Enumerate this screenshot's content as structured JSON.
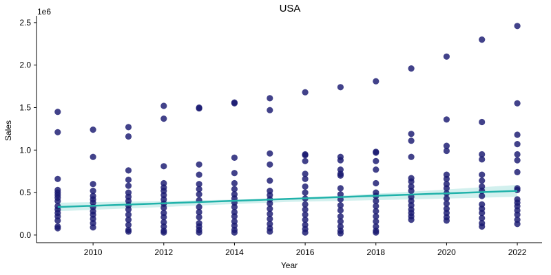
{
  "chart_data": {
    "type": "scatter",
    "title": "USA",
    "xlabel": "Year",
    "ylabel": "Sales",
    "y_offset_label": "1e6",
    "xlim": [
      2008.4,
      2022.7
    ],
    "ylim": [
      -0.09,
      2.58
    ],
    "xticks": [
      2010,
      2012,
      2014,
      2016,
      2018,
      2020,
      2022
    ],
    "yticks": [
      0.0,
      0.5,
      1.0,
      1.5,
      2.0,
      2.5
    ],
    "ytick_labels": [
      "0.0",
      "0.5",
      "1.0",
      "1.5",
      "2.0",
      "2.5"
    ],
    "grid": false,
    "colors": {
      "points": "#191970",
      "trend": "#20b2aa",
      "band": "#20b2aa"
    },
    "series": [
      {
        "name": "sales",
        "points": [
          [
            2009,
            1.45
          ],
          [
            2009,
            1.21
          ],
          [
            2009,
            0.66
          ],
          [
            2009,
            0.53
          ],
          [
            2009,
            0.5
          ],
          [
            2009,
            0.47
          ],
          [
            2009,
            0.44
          ],
          [
            2009,
            0.4
          ],
          [
            2009,
            0.34
          ],
          [
            2009,
            0.3
          ],
          [
            2009,
            0.26
          ],
          [
            2009,
            0.22
          ],
          [
            2009,
            0.17
          ],
          [
            2009,
            0.1
          ],
          [
            2009,
            0.08
          ],
          [
            2010,
            1.24
          ],
          [
            2010,
            0.92
          ],
          [
            2010,
            0.6
          ],
          [
            2010,
            0.52
          ],
          [
            2010,
            0.46
          ],
          [
            2010,
            0.42
          ],
          [
            2010,
            0.38
          ],
          [
            2010,
            0.33
          ],
          [
            2010,
            0.28
          ],
          [
            2010,
            0.24
          ],
          [
            2010,
            0.19
          ],
          [
            2010,
            0.14
          ],
          [
            2010,
            0.09
          ],
          [
            2011,
            1.27
          ],
          [
            2011,
            1.16
          ],
          [
            2011,
            0.76
          ],
          [
            2011,
            0.65
          ],
          [
            2011,
            0.58
          ],
          [
            2011,
            0.5
          ],
          [
            2011,
            0.45
          ],
          [
            2011,
            0.4
          ],
          [
            2011,
            0.35
          ],
          [
            2011,
            0.3
          ],
          [
            2011,
            0.24
          ],
          [
            2011,
            0.18
          ],
          [
            2011,
            0.12
          ],
          [
            2011,
            0.06
          ],
          [
            2011,
            0.04
          ],
          [
            2012,
            1.52
          ],
          [
            2012,
            1.37
          ],
          [
            2012,
            0.81
          ],
          [
            2012,
            0.61
          ],
          [
            2012,
            0.56
          ],
          [
            2012,
            0.52
          ],
          [
            2012,
            0.47
          ],
          [
            2012,
            0.42
          ],
          [
            2012,
            0.37
          ],
          [
            2012,
            0.32
          ],
          [
            2012,
            0.26
          ],
          [
            2012,
            0.21
          ],
          [
            2012,
            0.15
          ],
          [
            2012,
            0.1
          ],
          [
            2012,
            0.05
          ],
          [
            2012,
            0.03
          ],
          [
            2013,
            1.5
          ],
          [
            2013,
            1.49
          ],
          [
            2013,
            0.83
          ],
          [
            2013,
            0.71
          ],
          [
            2013,
            0.6
          ],
          [
            2013,
            0.54
          ],
          [
            2013,
            0.48
          ],
          [
            2013,
            0.41
          ],
          [
            2013,
            0.33
          ],
          [
            2013,
            0.27
          ],
          [
            2013,
            0.21
          ],
          [
            2013,
            0.14
          ],
          [
            2013,
            0.1
          ],
          [
            2013,
            0.06
          ],
          [
            2013,
            0.03
          ],
          [
            2014,
            1.56
          ],
          [
            2014,
            1.55
          ],
          [
            2014,
            0.91
          ],
          [
            2014,
            0.73
          ],
          [
            2014,
            0.61
          ],
          [
            2014,
            0.54
          ],
          [
            2014,
            0.48
          ],
          [
            2014,
            0.43
          ],
          [
            2014,
            0.38
          ],
          [
            2014,
            0.33
          ],
          [
            2014,
            0.27
          ],
          [
            2014,
            0.22
          ],
          [
            2014,
            0.16
          ],
          [
            2014,
            0.11
          ],
          [
            2014,
            0.06
          ],
          [
            2014,
            0.03
          ],
          [
            2015,
            1.61
          ],
          [
            2015,
            1.47
          ],
          [
            2015,
            0.96
          ],
          [
            2015,
            0.83
          ],
          [
            2015,
            0.64
          ],
          [
            2015,
            0.52
          ],
          [
            2015,
            0.47
          ],
          [
            2015,
            0.42
          ],
          [
            2015,
            0.37
          ],
          [
            2015,
            0.31
          ],
          [
            2015,
            0.25
          ],
          [
            2015,
            0.19
          ],
          [
            2015,
            0.13
          ],
          [
            2015,
            0.08
          ],
          [
            2015,
            0.04
          ],
          [
            2016,
            1.68
          ],
          [
            2016,
            0.95
          ],
          [
            2016,
            0.94
          ],
          [
            2016,
            0.87
          ],
          [
            2016,
            0.72
          ],
          [
            2016,
            0.66
          ],
          [
            2016,
            0.57
          ],
          [
            2016,
            0.5
          ],
          [
            2016,
            0.43
          ],
          [
            2016,
            0.36
          ],
          [
            2016,
            0.3
          ],
          [
            2016,
            0.24
          ],
          [
            2016,
            0.18
          ],
          [
            2016,
            0.12
          ],
          [
            2016,
            0.07
          ],
          [
            2016,
            0.03
          ],
          [
            2017,
            1.74
          ],
          [
            2017,
            0.92
          ],
          [
            2017,
            0.88
          ],
          [
            2017,
            0.77
          ],
          [
            2017,
            0.72
          ],
          [
            2017,
            0.7
          ],
          [
            2017,
            0.55
          ],
          [
            2017,
            0.48
          ],
          [
            2017,
            0.42
          ],
          [
            2017,
            0.35
          ],
          [
            2017,
            0.29
          ],
          [
            2017,
            0.22
          ],
          [
            2017,
            0.16
          ],
          [
            2017,
            0.1
          ],
          [
            2017,
            0.05
          ],
          [
            2017,
            0.02
          ],
          [
            2018,
            1.81
          ],
          [
            2018,
            0.98
          ],
          [
            2018,
            0.97
          ],
          [
            2018,
            0.87
          ],
          [
            2018,
            0.77
          ],
          [
            2018,
            0.61
          ],
          [
            2018,
            0.5
          ],
          [
            2018,
            0.46
          ],
          [
            2018,
            0.4
          ],
          [
            2018,
            0.34
          ],
          [
            2018,
            0.28
          ],
          [
            2018,
            0.22
          ],
          [
            2018,
            0.16
          ],
          [
            2018,
            0.1
          ],
          [
            2018,
            0.05
          ],
          [
            2018,
            0.03
          ],
          [
            2019,
            1.96
          ],
          [
            2019,
            1.19
          ],
          [
            2019,
            1.11
          ],
          [
            2019,
            0.92
          ],
          [
            2019,
            0.67
          ],
          [
            2019,
            0.63
          ],
          [
            2019,
            0.57
          ],
          [
            2019,
            0.52
          ],
          [
            2019,
            0.45
          ],
          [
            2019,
            0.4
          ],
          [
            2019,
            0.35
          ],
          [
            2019,
            0.3
          ],
          [
            2019,
            0.26
          ],
          [
            2019,
            0.22
          ],
          [
            2019,
            0.18
          ],
          [
            2020,
            2.1
          ],
          [
            2020,
            1.36
          ],
          [
            2020,
            1.05
          ],
          [
            2020,
            0.99
          ],
          [
            2020,
            0.71
          ],
          [
            2020,
            0.66
          ],
          [
            2020,
            0.6
          ],
          [
            2020,
            0.55
          ],
          [
            2020,
            0.49
          ],
          [
            2020,
            0.43
          ],
          [
            2020,
            0.37
          ],
          [
            2020,
            0.31
          ],
          [
            2020,
            0.26
          ],
          [
            2020,
            0.21
          ],
          [
            2020,
            0.17
          ],
          [
            2021,
            2.3
          ],
          [
            2021,
            1.33
          ],
          [
            2021,
            0.95
          ],
          [
            2021,
            0.89
          ],
          [
            2021,
            0.71
          ],
          [
            2021,
            0.64
          ],
          [
            2021,
            0.57
          ],
          [
            2021,
            0.52
          ],
          [
            2021,
            0.46
          ],
          [
            2021,
            0.36
          ],
          [
            2021,
            0.31
          ],
          [
            2021,
            0.26
          ],
          [
            2021,
            0.2
          ],
          [
            2021,
            0.14
          ],
          [
            2021,
            0.1
          ],
          [
            2022,
            2.46
          ],
          [
            2022,
            1.55
          ],
          [
            2022,
            1.18
          ],
          [
            2022,
            1.07
          ],
          [
            2022,
            0.95
          ],
          [
            2022,
            0.88
          ],
          [
            2022,
            0.74
          ],
          [
            2022,
            0.55
          ],
          [
            2022,
            0.53
          ],
          [
            2022,
            0.42
          ],
          [
            2022,
            0.38
          ],
          [
            2022,
            0.34
          ],
          [
            2022,
            0.29
          ],
          [
            2022,
            0.24
          ],
          [
            2022,
            0.18
          ],
          [
            2022,
            0.13
          ]
        ]
      }
    ],
    "trend_line": {
      "x": [
        2009,
        2022
      ],
      "y": [
        0.33,
        0.52
      ]
    },
    "confidence_band": {
      "x": [
        2009,
        2012,
        2015.5,
        2019,
        2022
      ],
      "lower": [
        0.28,
        0.33,
        0.39,
        0.42,
        0.45
      ],
      "upper": [
        0.38,
        0.4,
        0.43,
        0.51,
        0.59
      ]
    }
  }
}
